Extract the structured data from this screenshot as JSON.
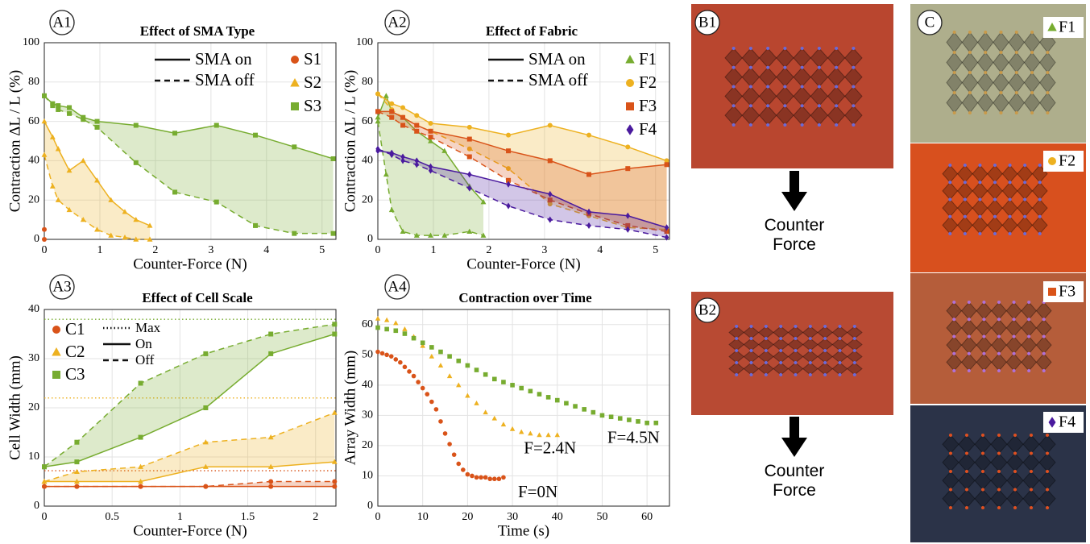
{
  "chart_data": [
    {
      "type": "line",
      "panel": "A1",
      "title": "Effect of SMA Type",
      "xlabel": "Counter-Force (N)",
      "ylabel": "Contraction ΔL / L (%)",
      "xlim": [
        0,
        5.25
      ],
      "xticks": [
        0,
        1,
        2,
        3,
        4,
        5
      ],
      "ylim": [
        0,
        100
      ],
      "yticks": [
        0,
        20,
        40,
        60,
        80,
        100
      ],
      "grid": true,
      "line_styles": [
        {
          "name": "SMA on",
          "dash": "solid"
        },
        {
          "name": "SMA off",
          "dash": "dashed"
        }
      ],
      "series": [
        {
          "name": "S1",
          "color": "#d95319",
          "marker": "circle",
          "x": [
            0
          ],
          "values": [
            5
          ],
          "values_off": [
            0
          ]
        },
        {
          "name": "S2",
          "color": "#edb120",
          "marker": "triangle",
          "x": [
            0,
            0.15,
            0.25,
            0.45,
            0.7,
            0.95,
            1.2,
            1.45,
            1.65,
            1.9
          ],
          "values": [
            60,
            52,
            46,
            35,
            40,
            30,
            20,
            14,
            10,
            7
          ],
          "values_off": [
            43,
            27,
            20,
            15,
            10,
            5,
            2,
            1,
            0,
            0
          ]
        },
        {
          "name": "S3",
          "color": "#77ac30",
          "marker": "square",
          "x": [
            0,
            0.15,
            0.25,
            0.45,
            0.7,
            0.95,
            1.65,
            2.35,
            3.1,
            3.8,
            4.5,
            5.2
          ],
          "values": [
            73,
            69,
            68,
            67,
            62,
            60,
            58,
            54,
            58,
            53,
            47,
            41
          ],
          "values_off": [
            73,
            68,
            66,
            64,
            61,
            57,
            39,
            24,
            19,
            7,
            3,
            3
          ]
        }
      ]
    },
    {
      "type": "line",
      "panel": "A2",
      "title": "Effect of Fabric",
      "xlabel": "Counter-Force (N)",
      "ylabel": "Contraction ΔL / L (%)",
      "xlim": [
        0,
        5.25
      ],
      "xticks": [
        0,
        1,
        2,
        3,
        4,
        5
      ],
      "ylim": [
        0,
        100
      ],
      "yticks": [
        0,
        20,
        40,
        60,
        80,
        100
      ],
      "grid": true,
      "line_styles": [
        {
          "name": "SMA on",
          "dash": "solid"
        },
        {
          "name": "SMA off",
          "dash": "dashed"
        }
      ],
      "series": [
        {
          "name": "F1",
          "color": "#77ac30",
          "marker": "triangle",
          "x": [
            0,
            0.15,
            0.25,
            0.45,
            0.7,
            0.95,
            1.2,
            1.65,
            1.9
          ],
          "values": [
            62,
            73,
            65,
            62,
            55,
            50,
            45,
            27,
            19
          ],
          "values_off": [
            60,
            33,
            15,
            4,
            2,
            2,
            2,
            4,
            2
          ]
        },
        {
          "name": "F2",
          "color": "#edb120",
          "marker": "circle",
          "x": [
            0,
            0.25,
            0.45,
            0.7,
            0.95,
            1.65,
            2.35,
            3.1,
            3.8,
            4.5,
            5.2
          ],
          "values": [
            74,
            69,
            67,
            63,
            59,
            57,
            53,
            58,
            53,
            47,
            40
          ],
          "values_off": [
            74,
            66,
            62,
            58,
            55,
            46,
            36,
            18,
            12,
            6,
            5
          ]
        },
        {
          "name": "F3",
          "color": "#d95319",
          "marker": "square",
          "x": [
            0,
            0.25,
            0.45,
            0.7,
            0.95,
            1.65,
            2.35,
            3.1,
            3.8,
            4.5,
            5.2
          ],
          "values": [
            65,
            65,
            62,
            58,
            55,
            51,
            45,
            40,
            33,
            36,
            38
          ],
          "values_off": [
            65,
            62,
            58,
            55,
            52,
            42,
            30,
            20,
            13,
            7,
            4
          ]
        },
        {
          "name": "F4",
          "color": "#4a1a9e",
          "marker": "diamond",
          "x": [
            0,
            0.25,
            0.45,
            0.7,
            0.95,
            1.65,
            2.35,
            3.1,
            3.8,
            4.5,
            5.2
          ],
          "values": [
            45,
            44,
            42,
            40,
            37,
            33,
            28,
            23,
            14,
            12,
            6
          ],
          "values_off": [
            46,
            43,
            40,
            38,
            35,
            26,
            17,
            10,
            7,
            5,
            1
          ]
        }
      ]
    },
    {
      "type": "line",
      "panel": "A3",
      "title": "Effect of Cell Scale",
      "xlabel": "Counter-Force (N)",
      "ylabel": "Cell Width (mm)",
      "xlim": [
        0,
        2.15
      ],
      "xticks": [
        0,
        0.5,
        1,
        1.5,
        2
      ],
      "ylim": [
        0,
        40
      ],
      "yticks": [
        0,
        10,
        20,
        30,
        40
      ],
      "grid": true,
      "line_styles": [
        {
          "name": "Max",
          "dash": "dotted"
        },
        {
          "name": "On",
          "dash": "solid"
        },
        {
          "name": "Off",
          "dash": "dashed"
        }
      ],
      "series": [
        {
          "name": "C1",
          "color": "#d95319",
          "marker": "circle",
          "max": 7.2,
          "x": [
            0,
            0.24,
            0.71,
            1.19,
            1.67,
            2.14
          ],
          "values": [
            4,
            4,
            4,
            4,
            4,
            4
          ],
          "values_off": [
            4,
            4,
            4,
            4,
            5,
            5
          ]
        },
        {
          "name": "C2",
          "color": "#edb120",
          "marker": "triangle",
          "max": 22,
          "x": [
            0,
            0.24,
            0.71,
            1.19,
            1.67,
            2.14
          ],
          "values": [
            5,
            5,
            5,
            8,
            8,
            9
          ],
          "values_off": [
            5,
            7,
            8,
            13,
            14,
            19
          ]
        },
        {
          "name": "C3",
          "color": "#77ac30",
          "marker": "square",
          "max": 38,
          "x": [
            0,
            0.24,
            0.71,
            1.19,
            1.67,
            2.14
          ],
          "values": [
            8,
            9,
            14,
            20,
            31,
            35
          ],
          "values_off": [
            8,
            13,
            25,
            31,
            35,
            37
          ]
        }
      ]
    },
    {
      "type": "scatter",
      "panel": "A4",
      "title": "Contraction over Time",
      "xlabel": "Time (s)",
      "ylabel": "Array Width (mm)",
      "xlim": [
        0,
        65
      ],
      "xticks": [
        0,
        10,
        20,
        30,
        40,
        50,
        60
      ],
      "ylim": [
        0,
        65
      ],
      "yticks": [
        0,
        10,
        20,
        30,
        40,
        50,
        60
      ],
      "grid": true,
      "series": [
        {
          "name": "F=0N",
          "color": "#d95319",
          "marker": "circle",
          "x": [
            0,
            1,
            2,
            3,
            4,
            5,
            6,
            7,
            8,
            9,
            10,
            11,
            12,
            13,
            14,
            15,
            16,
            17,
            18,
            19,
            20,
            21,
            22,
            23,
            24,
            25,
            26,
            27,
            28
          ],
          "values": [
            51,
            50.5,
            50,
            49.5,
            48.5,
            47.5,
            46,
            44.5,
            43,
            41,
            39,
            37,
            34.5,
            32,
            28,
            24,
            20.5,
            17,
            14,
            12,
            10.5,
            10,
            9.5,
            9.5,
            9.5,
            9,
            9,
            9,
            9.5
          ]
        },
        {
          "name": "F=2.4N",
          "color": "#edb120",
          "marker": "triangle",
          "x": [
            0,
            2,
            4,
            6,
            8,
            10,
            12,
            14,
            16,
            18,
            20,
            22,
            24,
            26,
            28,
            30,
            32,
            34,
            36,
            38,
            40
          ],
          "values": [
            62,
            61.5,
            60.5,
            58.5,
            56,
            53,
            49.5,
            46.5,
            43,
            40,
            36.5,
            34,
            31,
            29,
            27,
            25.5,
            24.5,
            24,
            23.5,
            23.5,
            23.5
          ]
        },
        {
          "name": "F=4.5N",
          "color": "#77ac30",
          "marker": "square",
          "x": [
            0,
            2,
            4,
            6,
            8,
            10,
            12,
            14,
            16,
            18,
            20,
            22,
            24,
            26,
            28,
            30,
            32,
            34,
            36,
            38,
            40,
            42,
            44,
            46,
            48,
            50,
            52,
            54,
            56,
            58,
            60,
            62
          ],
          "values": [
            59,
            58.5,
            58,
            57,
            55.5,
            54,
            52.5,
            51,
            49.5,
            48,
            46.5,
            45,
            43.5,
            42,
            41,
            40,
            39,
            38,
            37,
            36,
            35,
            34,
            33,
            32,
            31,
            30,
            29.5,
            29,
            28.5,
            28,
            27.5,
            27.5
          ]
        }
      ]
    }
  ],
  "photos": {
    "b_labels": [
      "B1",
      "B2"
    ],
    "caption": "Counter Force",
    "c_label": "C"
  }
}
